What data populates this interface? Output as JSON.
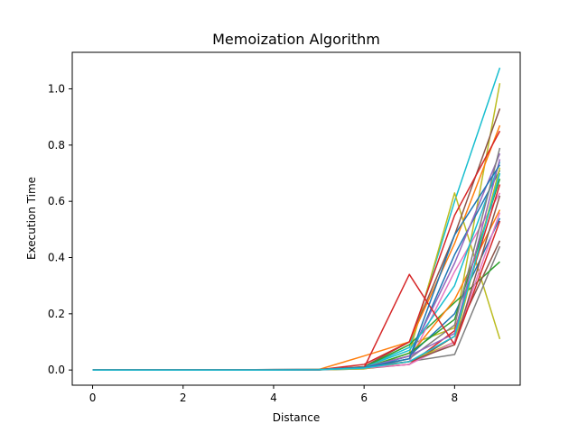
{
  "chart_data": {
    "type": "line",
    "title": "Memoization Algorithm",
    "xlabel": "Distance",
    "ylabel": "Execution Time",
    "xlim": [
      -0.45,
      9.45
    ],
    "ylim": [
      -0.054,
      1.13
    ],
    "xticks": [
      0,
      2,
      4,
      6,
      8
    ],
    "yticks": [
      0.0,
      0.2,
      0.4,
      0.6,
      0.8,
      1.0
    ],
    "xtick_labels": [
      "0",
      "2",
      "4",
      "6",
      "8"
    ],
    "ytick_labels": [
      "0.0",
      "0.2",
      "0.4",
      "0.6",
      "0.8",
      "1.0"
    ],
    "grid": false,
    "legend": false,
    "x": [
      0,
      1,
      2,
      3,
      4,
      5,
      6,
      7,
      8,
      9
    ],
    "series": [
      {
        "color": "#17becf",
        "values": [
          0,
          0,
          0,
          0,
          0,
          0.001,
          0.01,
          0.08,
          0.6,
          1.075
        ]
      },
      {
        "color": "#bcbd22",
        "values": [
          0,
          0,
          0,
          0,
          0,
          0.001,
          0.008,
          0.06,
          0.63,
          0.11
        ]
      },
      {
        "color": "#bcbd22",
        "values": [
          0,
          0,
          0,
          0,
          0,
          0.001,
          0.01,
          0.09,
          0.15,
          1.02
        ]
      },
      {
        "color": "#8c564b",
        "values": [
          0,
          0,
          0,
          0,
          0,
          0.001,
          0.012,
          0.1,
          0.48,
          0.93
        ]
      },
      {
        "color": "#7f7f7f",
        "values": [
          0,
          0,
          0,
          0,
          0.002,
          0.003,
          0.01,
          0.03,
          0.055,
          0.44
        ]
      },
      {
        "color": "#ff7f0e",
        "values": [
          0,
          0,
          0,
          0,
          0,
          0.002,
          0.05,
          0.1,
          0.45,
          0.87
        ]
      },
      {
        "color": "#d62728",
        "values": [
          0,
          0,
          0,
          0,
          0,
          0.001,
          0.02,
          0.1,
          0.55,
          0.85
        ]
      },
      {
        "color": "#2ca02c",
        "values": [
          0,
          0,
          0,
          0,
          0,
          0.001,
          0.01,
          0.09,
          0.24,
          0.385
        ]
      },
      {
        "color": "#1f77b4",
        "values": [
          0,
          0,
          0,
          0,
          0,
          0.001,
          0.009,
          0.04,
          0.41,
          0.71
        ]
      },
      {
        "color": "#9467bd",
        "values": [
          0,
          0,
          0,
          0,
          0,
          0.001,
          0.008,
          0.05,
          0.38,
          0.77
        ]
      },
      {
        "color": "#e377c2",
        "values": [
          0,
          0,
          0,
          0,
          0,
          0.001,
          0.006,
          0.03,
          0.35,
          0.63
        ]
      },
      {
        "color": "#ff7f0e",
        "values": [
          0,
          0,
          0,
          0,
          0,
          0.001,
          0.01,
          0.05,
          0.25,
          0.57
        ]
      },
      {
        "color": "#8c564b",
        "values": [
          0,
          0,
          0,
          0,
          0,
          0.001,
          0.005,
          0.02,
          0.12,
          0.46
        ]
      },
      {
        "color": "#d62728",
        "values": [
          0,
          0,
          0,
          0,
          0,
          0.001,
          0.008,
          0.02,
          0.14,
          0.66
        ]
      },
      {
        "color": "#17becf",
        "values": [
          0,
          0,
          0,
          0,
          0,
          0.002,
          0.01,
          0.07,
          0.3,
          0.74
        ]
      },
      {
        "color": "#1f77b4",
        "values": [
          0,
          0,
          0,
          0,
          0,
          0.001,
          0.004,
          0.05,
          0.2,
          0.54
        ]
      },
      {
        "color": "#2ca02c",
        "values": [
          0,
          0,
          0,
          0,
          0,
          0.001,
          0.006,
          0.06,
          0.18,
          0.68
        ]
      },
      {
        "color": "#7f7f7f",
        "values": [
          0,
          0,
          0,
          0,
          0,
          0.001,
          0.005,
          0.04,
          0.16,
          0.79
        ]
      },
      {
        "color": "#bcbd22",
        "values": [
          0,
          0,
          0,
          0,
          0,
          0.001,
          0.004,
          0.03,
          0.1,
          0.72
        ]
      },
      {
        "color": "#e377c2",
        "values": [
          0,
          0,
          0,
          0,
          0,
          0.001,
          0.007,
          0.02,
          0.1,
          0.56
        ]
      },
      {
        "color": "#9467bd",
        "values": [
          0,
          0,
          0,
          0,
          0,
          0.001,
          0.009,
          0.05,
          0.13,
          0.75
        ]
      },
      {
        "color": "#8c564b",
        "values": [
          0,
          0,
          0,
          0,
          0,
          0.001,
          0.01,
          0.03,
          0.09,
          0.62
        ]
      },
      {
        "color": "#d62728",
        "values": [
          0,
          0,
          0,
          0,
          0,
          0.001,
          0.008,
          0.34,
          0.09,
          0.53
        ]
      },
      {
        "color": "#1f77b4",
        "values": [
          0,
          0,
          0,
          0,
          0,
          0.001,
          0.009,
          0.04,
          0.48,
          0.73
        ]
      },
      {
        "color": "#17becf",
        "values": [
          0,
          0,
          0,
          0,
          0,
          0.001,
          0.007,
          0.03,
          0.12,
          0.7
        ]
      }
    ]
  }
}
